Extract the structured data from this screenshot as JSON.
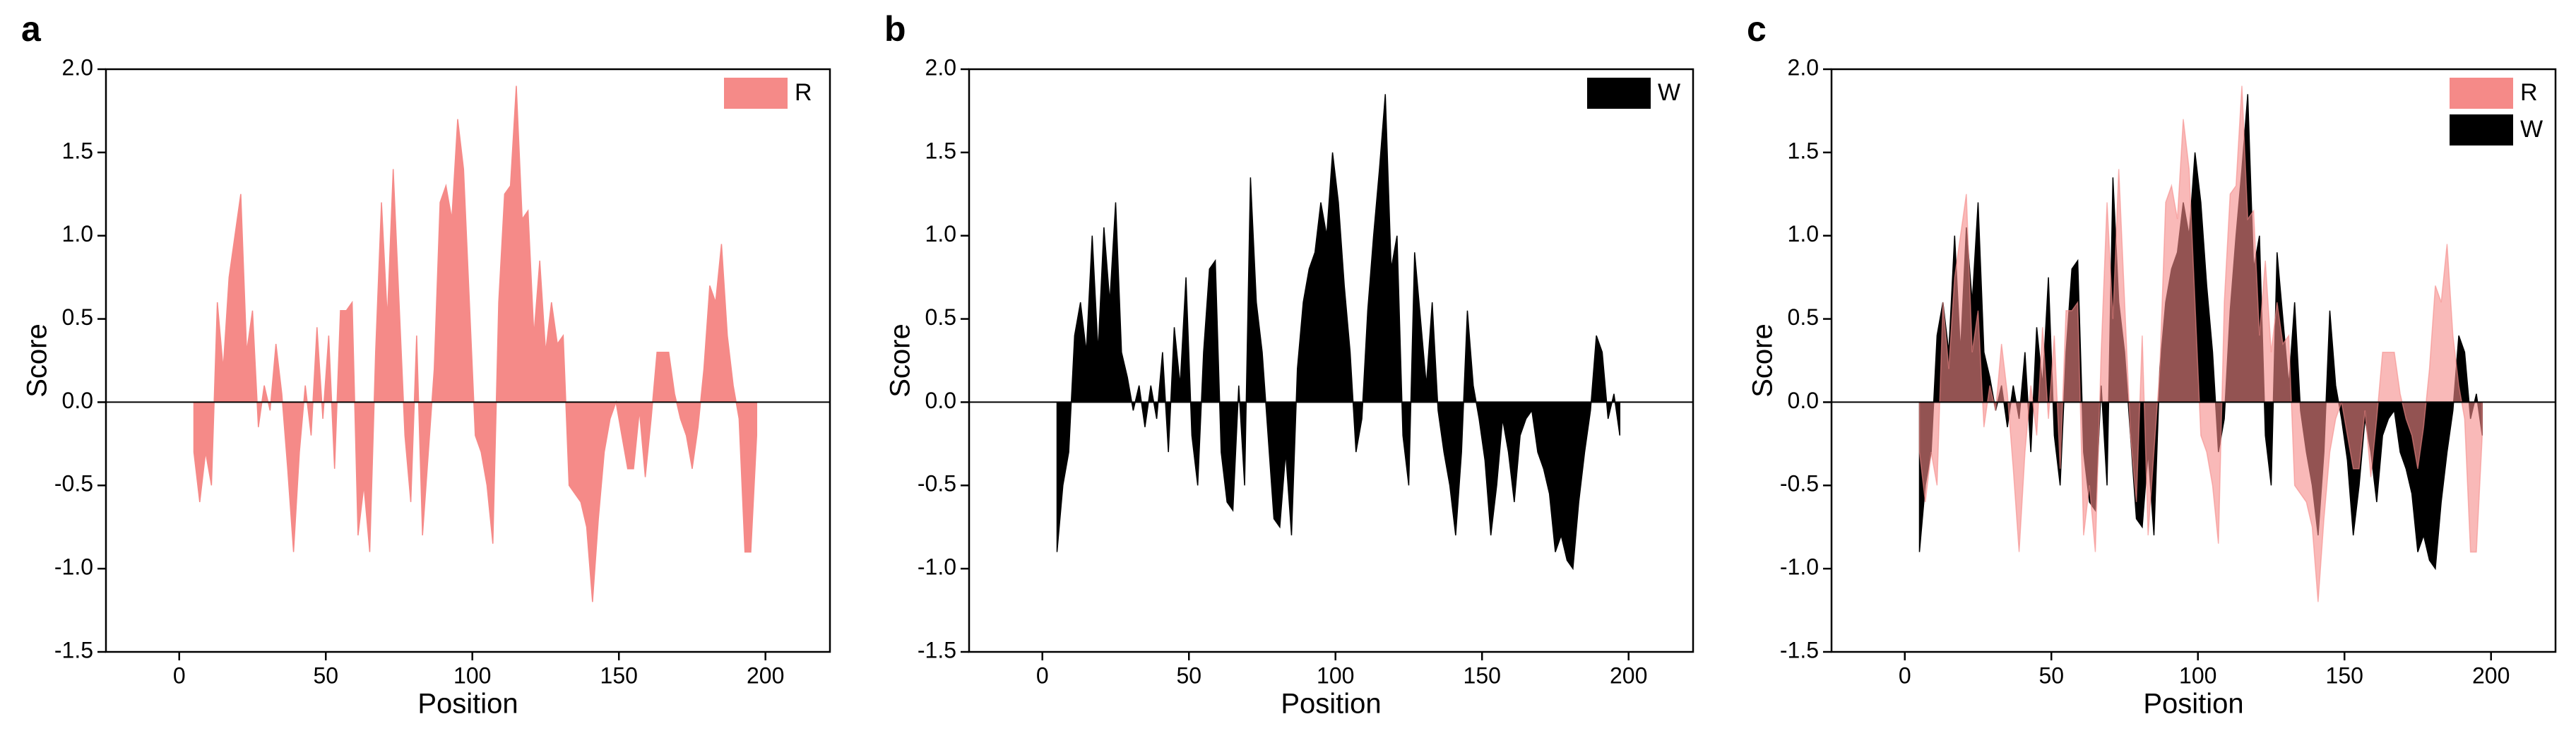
{
  "chart_data": [
    {
      "type": "area",
      "panel_label": "a",
      "xlabel": "Position",
      "ylabel": "Score",
      "x": [
        5,
        7,
        9,
        11,
        13,
        15,
        17,
        19,
        21,
        23,
        25,
        27,
        29,
        31,
        33,
        35,
        37,
        39,
        41,
        43,
        45,
        47,
        49,
        51,
        53,
        55,
        57,
        59,
        61,
        63,
        65,
        67,
        69,
        71,
        73,
        75,
        77,
        79,
        81,
        83,
        85,
        87,
        89,
        91,
        93,
        95,
        97,
        99,
        101,
        103,
        105,
        107,
        109,
        111,
        113,
        115,
        117,
        119,
        121,
        123,
        125,
        127,
        129,
        131,
        133,
        135,
        137,
        139,
        141,
        143,
        145,
        147,
        149,
        151,
        153,
        155,
        157,
        159,
        161,
        163,
        165,
        167,
        169,
        171,
        173,
        175,
        177,
        179,
        181,
        183,
        185,
        187,
        189,
        191,
        193,
        195,
        197
      ],
      "series": [
        {
          "name": "R",
          "color": "#f58a88",
          "values": [
            -0.3,
            -0.6,
            -0.3,
            -0.5,
            0.6,
            0.2,
            0.75,
            1.0,
            1.25,
            0.3,
            0.55,
            -0.15,
            0.1,
            -0.05,
            0.35,
            0.05,
            -0.4,
            -0.9,
            -0.3,
            0.1,
            -0.2,
            0.45,
            -0.1,
            0.4,
            -0.4,
            0.55,
            0.55,
            0.6,
            -0.8,
            -0.5,
            -0.9,
            0.3,
            1.2,
            0.5,
            1.4,
            0.6,
            -0.2,
            -0.6,
            0.4,
            -0.8,
            -0.3,
            0.2,
            1.2,
            1.3,
            1.1,
            1.7,
            1.4,
            0.6,
            -0.2,
            -0.3,
            -0.5,
            -0.85,
            0.6,
            1.25,
            1.3,
            1.9,
            1.1,
            1.15,
            0.4,
            0.85,
            0.3,
            0.6,
            0.35,
            0.4,
            -0.5,
            -0.55,
            -0.6,
            -0.75,
            -1.2,
            -0.7,
            -0.3,
            -0.1,
            0.0,
            -0.2,
            -0.4,
            -0.4,
            -0.05,
            -0.45,
            -0.1,
            0.3,
            0.3,
            0.3,
            0.05,
            -0.1,
            -0.2,
            -0.4,
            -0.15,
            0.2,
            0.7,
            0.6,
            0.95,
            0.4,
            0.1,
            -0.1,
            -0.9,
            -0.9,
            -0.2
          ]
        }
      ],
      "xlim": [
        -25,
        222
      ],
      "ylim": [
        -1.5,
        2.0
      ],
      "xticks": [
        0,
        50,
        100,
        150,
        200
      ],
      "yticks": [
        {
          "value": -1.5,
          "label": "-1.5"
        },
        {
          "value": -1,
          "label": "-1.0"
        },
        {
          "value": -0.5,
          "label": "-0.5"
        },
        {
          "value": 0,
          "label": "0.0"
        },
        {
          "value": 0.5,
          "label": "0.5"
        },
        {
          "value": 1,
          "label": "1.0"
        },
        {
          "value": 1.5,
          "label": "1.5"
        },
        {
          "value": 2,
          "label": "2.0"
        }
      ],
      "legend": "upper right"
    },
    {
      "type": "area",
      "panel_label": "b",
      "xlabel": "Position",
      "ylabel": "Score",
      "x": [
        5,
        7,
        9,
        11,
        13,
        15,
        17,
        19,
        21,
        23,
        25,
        27,
        29,
        31,
        33,
        35,
        37,
        39,
        41,
        43,
        45,
        47,
        49,
        51,
        53,
        55,
        57,
        59,
        61,
        63,
        65,
        67,
        69,
        71,
        73,
        75,
        77,
        79,
        81,
        83,
        85,
        87,
        89,
        91,
        93,
        95,
        97,
        99,
        101,
        103,
        105,
        107,
        109,
        111,
        113,
        115,
        117,
        119,
        121,
        123,
        125,
        127,
        129,
        131,
        133,
        135,
        137,
        139,
        141,
        143,
        145,
        147,
        149,
        151,
        153,
        155,
        157,
        159,
        161,
        163,
        165,
        167,
        169,
        171,
        173,
        175,
        177,
        179,
        181,
        183,
        185,
        187,
        189,
        191,
        193,
        195,
        197
      ],
      "series": [
        {
          "name": "W",
          "color": "#000000",
          "values": [
            -0.9,
            -0.5,
            -0.3,
            0.4,
            0.6,
            0.3,
            1.0,
            0.3,
            1.05,
            0.6,
            1.2,
            0.3,
            0.15,
            -0.05,
            0.1,
            -0.15,
            0.1,
            -0.1,
            0.3,
            -0.3,
            0.45,
            0.1,
            0.75,
            -0.2,
            -0.5,
            0.3,
            0.8,
            0.85,
            -0.3,
            -0.6,
            -0.65,
            0.1,
            -0.5,
            1.35,
            0.6,
            0.3,
            -0.2,
            -0.7,
            -0.75,
            -0.3,
            -0.8,
            0.2,
            0.6,
            0.8,
            0.9,
            1.2,
            1.0,
            1.5,
            1.2,
            0.7,
            0.3,
            -0.3,
            -0.1,
            0.55,
            1.0,
            1.4,
            1.85,
            0.8,
            1.0,
            -0.2,
            -0.5,
            0.9,
            0.5,
            0.1,
            0.6,
            -0.05,
            -0.3,
            -0.5,
            -0.8,
            -0.3,
            0.55,
            0.1,
            -0.1,
            -0.35,
            -0.8,
            -0.5,
            -0.1,
            -0.3,
            -0.6,
            -0.2,
            -0.1,
            -0.05,
            -0.3,
            -0.4,
            -0.55,
            -0.9,
            -0.8,
            -0.95,
            -1.0,
            -0.6,
            -0.3,
            -0.05,
            0.4,
            0.3,
            -0.1,
            0.05,
            -0.2
          ]
        }
      ],
      "xlim": [
        -25,
        222
      ],
      "ylim": [
        -1.5,
        2.0
      ],
      "xticks": [
        0,
        50,
        100,
        150,
        200
      ],
      "yticks": [
        {
          "value": -1.5,
          "label": "-1.5"
        },
        {
          "value": -1,
          "label": "-1.0"
        },
        {
          "value": -0.5,
          "label": "-0.5"
        },
        {
          "value": 0,
          "label": "0.0"
        },
        {
          "value": 0.5,
          "label": "0.5"
        },
        {
          "value": 1,
          "label": "1.0"
        },
        {
          "value": 1.5,
          "label": "1.5"
        },
        {
          "value": 2,
          "label": "2.0"
        }
      ],
      "legend": "upper right"
    },
    {
      "type": "area",
      "panel_label": "c",
      "xlabel": "Position",
      "ylabel": "Score",
      "x": [
        5,
        7,
        9,
        11,
        13,
        15,
        17,
        19,
        21,
        23,
        25,
        27,
        29,
        31,
        33,
        35,
        37,
        39,
        41,
        43,
        45,
        47,
        49,
        51,
        53,
        55,
        57,
        59,
        61,
        63,
        65,
        67,
        69,
        71,
        73,
        75,
        77,
        79,
        81,
        83,
        85,
        87,
        89,
        91,
        93,
        95,
        97,
        99,
        101,
        103,
        105,
        107,
        109,
        111,
        113,
        115,
        117,
        119,
        121,
        123,
        125,
        127,
        129,
        131,
        133,
        135,
        137,
        139,
        141,
        143,
        145,
        147,
        149,
        151,
        153,
        155,
        157,
        159,
        161,
        163,
        165,
        167,
        169,
        171,
        173,
        175,
        177,
        179,
        181,
        183,
        185,
        187,
        189,
        191,
        193,
        195,
        197
      ],
      "series": [
        {
          "name": "W",
          "color": "#000000",
          "values": [
            -0.9,
            -0.5,
            -0.3,
            0.4,
            0.6,
            0.3,
            1.0,
            0.3,
            1.05,
            0.6,
            1.2,
            0.3,
            0.15,
            -0.05,
            0.1,
            -0.15,
            0.1,
            -0.1,
            0.3,
            -0.3,
            0.45,
            0.1,
            0.75,
            -0.2,
            -0.5,
            0.3,
            0.8,
            0.85,
            -0.3,
            -0.6,
            -0.65,
            0.1,
            -0.5,
            1.35,
            0.6,
            0.3,
            -0.2,
            -0.7,
            -0.75,
            -0.3,
            -0.8,
            0.2,
            0.6,
            0.8,
            0.9,
            1.2,
            1.0,
            1.5,
            1.2,
            0.7,
            0.3,
            -0.3,
            -0.1,
            0.55,
            1.0,
            1.4,
            1.85,
            0.8,
            1.0,
            -0.2,
            -0.5,
            0.9,
            0.5,
            0.1,
            0.6,
            -0.05,
            -0.3,
            -0.5,
            -0.8,
            -0.3,
            0.55,
            0.1,
            -0.1,
            -0.35,
            -0.8,
            -0.5,
            -0.1,
            -0.3,
            -0.6,
            -0.2,
            -0.1,
            -0.05,
            -0.3,
            -0.4,
            -0.55,
            -0.9,
            -0.8,
            -0.95,
            -1.0,
            -0.6,
            -0.3,
            -0.05,
            0.4,
            0.3,
            -0.1,
            0.05,
            -0.2
          ]
        },
        {
          "name": "R",
          "color": "#f58a88",
          "opacity": 0.6,
          "values": [
            -0.3,
            -0.6,
            -0.3,
            -0.5,
            0.6,
            0.2,
            0.75,
            1.0,
            1.25,
            0.3,
            0.55,
            -0.15,
            0.1,
            -0.05,
            0.35,
            0.05,
            -0.4,
            -0.9,
            -0.3,
            0.1,
            -0.2,
            0.45,
            -0.1,
            0.4,
            -0.4,
            0.55,
            0.55,
            0.6,
            -0.8,
            -0.5,
            -0.9,
            0.3,
            1.2,
            0.5,
            1.4,
            0.6,
            -0.2,
            -0.6,
            0.4,
            -0.8,
            -0.3,
            0.2,
            1.2,
            1.3,
            1.1,
            1.7,
            1.4,
            0.6,
            -0.2,
            -0.3,
            -0.5,
            -0.85,
            0.6,
            1.25,
            1.3,
            1.9,
            1.1,
            1.15,
            0.4,
            0.85,
            0.3,
            0.6,
            0.35,
            0.4,
            -0.5,
            -0.55,
            -0.6,
            -0.75,
            -1.2,
            -0.7,
            -0.3,
            -0.1,
            0.0,
            -0.2,
            -0.4,
            -0.4,
            -0.05,
            -0.45,
            -0.1,
            0.3,
            0.3,
            0.3,
            0.05,
            -0.1,
            -0.2,
            -0.4,
            -0.15,
            0.2,
            0.7,
            0.6,
            0.95,
            0.4,
            0.1,
            -0.1,
            -0.9,
            -0.9,
            -0.2
          ]
        }
      ],
      "legend_order": [
        "R",
        "W"
      ],
      "xlim": [
        -25,
        222
      ],
      "ylim": [
        -1.5,
        2.0
      ],
      "xticks": [
        0,
        50,
        100,
        150,
        200
      ],
      "yticks": [
        {
          "value": -1.5,
          "label": "-1.5"
        },
        {
          "value": -1,
          "label": "-1.0"
        },
        {
          "value": -0.5,
          "label": "-0.5"
        },
        {
          "value": 0,
          "label": "0.0"
        },
        {
          "value": 0.5,
          "label": "0.5"
        },
        {
          "value": 1,
          "label": "1.0"
        },
        {
          "value": 1.5,
          "label": "1.5"
        },
        {
          "value": 2,
          "label": "2.0"
        }
      ],
      "legend": "upper right"
    }
  ]
}
